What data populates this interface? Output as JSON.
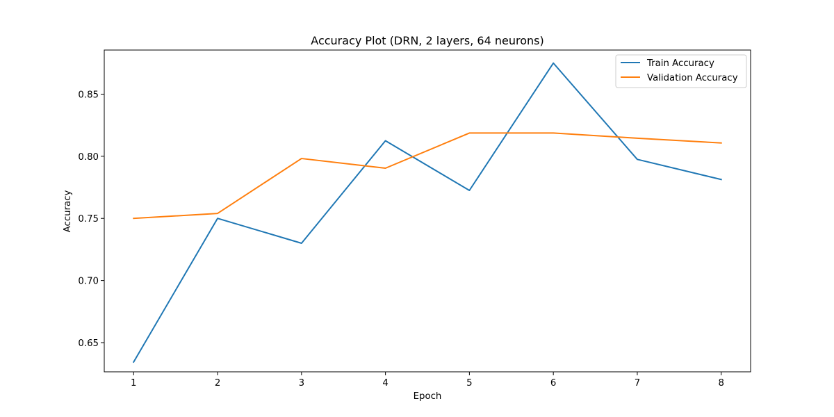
{
  "chart_data": {
    "type": "line",
    "title": "Accuracy Plot (DRN, 2 layers, 64 neurons)",
    "xlabel": "Epoch",
    "ylabel": "Accuracy",
    "x": [
      1,
      2,
      3,
      4,
      5,
      6,
      7,
      8
    ],
    "xticks": [
      "1",
      "2",
      "3",
      "4",
      "5",
      "6",
      "7",
      "8"
    ],
    "yticks": [
      "0.65",
      "0.70",
      "0.75",
      "0.80",
      "0.85"
    ],
    "xlim": [
      0.65,
      8.35
    ],
    "ylim": [
      0.6265,
      0.8855
    ],
    "grid": false,
    "legend_position": "top-right",
    "series": [
      {
        "name": "Train Accuracy",
        "color": "#1f77b4",
        "values": [
          0.6344,
          0.75,
          0.73,
          0.8125,
          0.7725,
          0.875,
          0.7975,
          0.7813
        ]
      },
      {
        "name": "Validation Accuracy",
        "color": "#ff7f0e",
        "values": [
          0.75,
          0.754,
          0.7982,
          0.7904,
          0.8187,
          0.8187,
          0.8145,
          0.8107
        ]
      }
    ]
  }
}
